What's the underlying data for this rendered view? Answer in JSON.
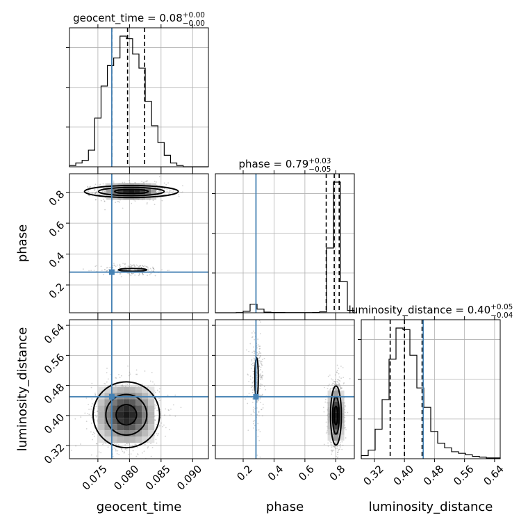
{
  "chart_data": {
    "type": "corner",
    "parameters": [
      "geocent_time",
      "phase",
      "luminosity_distance"
    ],
    "titles": [
      {
        "name": "geocent_time",
        "median": "0.08",
        "plus": "+0.00",
        "minus": "−0.00"
      },
      {
        "name": "phase",
        "median": "0.79",
        "plus": "+0.03",
        "minus": "−0.05"
      },
      {
        "name": "luminosity_distance",
        "median": "0.40",
        "plus": "+0.05",
        "minus": "−0.04"
      }
    ],
    "ranges": {
      "geocent_time": [
        0.0705,
        0.0925
      ],
      "phase": [
        0.02,
        0.92
      ],
      "luminosity_distance": [
        0.285,
        0.655
      ]
    },
    "ticks": {
      "geocent_time": {
        "values": [
          0.075,
          0.08,
          0.085,
          0.09
        ],
        "labels": [
          "0.075",
          "0.080",
          "0.085",
          "0.090"
        ]
      },
      "phase": {
        "values": [
          0.2,
          0.4,
          0.6,
          0.8
        ],
        "labels": [
          "0.2",
          "0.4",
          "0.6",
          "0.8"
        ]
      },
      "luminosity_distance": {
        "values": [
          0.32,
          0.4,
          0.48,
          0.56,
          0.64
        ],
        "labels": [
          "0.32",
          "0.40",
          "0.48",
          "0.56",
          "0.64"
        ]
      }
    },
    "truths": {
      "geocent_time": 0.0772,
      "phase": 0.283,
      "luminosity_distance": 0.45
    },
    "quantiles": {
      "geocent_time": [
        0.0772,
        0.0797,
        0.0824
      ],
      "phase": [
        0.738,
        0.79,
        0.822
      ],
      "luminosity_distance": [
        0.362,
        0.4,
        0.447
      ]
    },
    "histograms": {
      "geocent_time": {
        "edges": [
          0.0705,
          0.0715,
          0.0725,
          0.0735,
          0.0745,
          0.0755,
          0.0765,
          0.0775,
          0.0785,
          0.0795,
          0.0805,
          0.0815,
          0.0825,
          0.0835,
          0.0845,
          0.0855,
          0.0865,
          0.0875,
          0.0885,
          0.0895,
          0.0905,
          0.0915,
          0.0925
        ],
        "counts": [
          1,
          3,
          5,
          13,
          38,
          63,
          79,
          85,
          102,
          100,
          88,
          77,
          51,
          32,
          19,
          9,
          3,
          1,
          0,
          0,
          0,
          0
        ]
      },
      "phase": {
        "edges": [
          0.02,
          0.065,
          0.11,
          0.155,
          0.2,
          0.245,
          0.29,
          0.335,
          0.38,
          0.425,
          0.47,
          0.515,
          0.56,
          0.605,
          0.65,
          0.695,
          0.74,
          0.785,
          0.83,
          0.875,
          0.92
        ],
        "counts": [
          0,
          0,
          0,
          1,
          10,
          57,
          24,
          4,
          2,
          2,
          1,
          1,
          1,
          1,
          2,
          6,
          431,
          870,
          207,
          16
        ]
      },
      "luminosity_distance": {
        "edges": [
          0.285,
          0.3035,
          0.322,
          0.3405,
          0.359,
          0.3775,
          0.396,
          0.4145,
          0.433,
          0.4515,
          0.47,
          0.4885,
          0.507,
          0.5255,
          0.544,
          0.5625,
          0.581,
          0.5995,
          0.618,
          0.6365,
          0.655
        ],
        "counts": [
          4,
          11,
          38,
          76,
          128,
          168,
          166,
          133,
          91,
          66,
          35,
          20,
          14,
          9,
          7,
          5,
          3,
          2,
          1,
          1
        ]
      }
    },
    "contours_2d": {
      "geocent_time_vs_phase": [
        {
          "mode": [
            0.0803,
            0.805
          ],
          "levels_sigma": [
            1,
            2,
            3
          ]
        },
        {
          "mode": [
            0.0805,
            0.295
          ],
          "levels_sigma": [
            3
          ]
        }
      ],
      "geocent_time_vs_luminosity_distance": [
        {
          "mode": [
            0.0795,
            0.402
          ],
          "levels_sigma": [
            1,
            2,
            3
          ]
        }
      ],
      "phase_vs_luminosity_distance": [
        {
          "mode": [
            0.801,
            0.4
          ],
          "levels_sigma": [
            1,
            2,
            3
          ]
        },
        {
          "mode": [
            0.287,
            0.5
          ],
          "levels_sigma": [
            3
          ]
        }
      ]
    },
    "colors": {
      "truth": "#4682b4",
      "grid": "#b0b0b0",
      "points": "#7f7f7f",
      "hist": "#000000"
    }
  }
}
